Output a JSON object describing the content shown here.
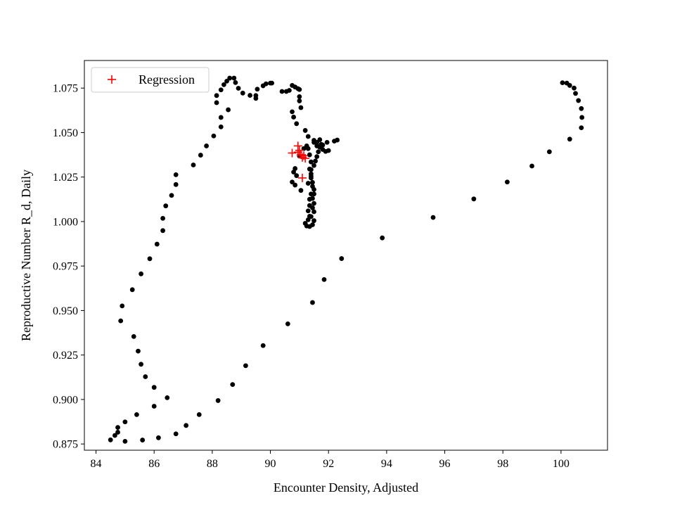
{
  "chart_data": {
    "type": "scatter",
    "title": "",
    "xlabel": "Encounter Density, Adjusted",
    "ylabel": "Reproductive Number R_d, Daily",
    "xlim": [
      83.6,
      101.6
    ],
    "ylim": [
      0.8715,
      1.0905
    ],
    "xticks": [
      84,
      86,
      88,
      90,
      92,
      94,
      96,
      98,
      100
    ],
    "yticks": [
      0.875,
      0.9,
      0.925,
      0.95,
      0.975,
      1.0,
      1.025,
      1.05,
      1.075
    ],
    "ytick_labels": [
      "0.875",
      "0.900",
      "0.925",
      "0.950",
      "0.975",
      "1.000",
      "1.025",
      "1.050",
      "1.075"
    ],
    "grid": false,
    "legend_position": "upper-left",
    "legend_entries": [
      "Regression"
    ],
    "series": [
      {
        "marker": "dot",
        "color": "#000000",
        "points": [
          [
            100.05,
            1.078
          ],
          [
            100.2,
            1.0778
          ],
          [
            100.3,
            1.0765
          ],
          [
            100.45,
            1.075
          ],
          [
            100.5,
            1.072
          ],
          [
            100.6,
            1.068
          ],
          [
            100.7,
            1.0635
          ],
          [
            100.72,
            1.0585
          ],
          [
            100.7,
            1.0527
          ],
          [
            100.3,
            1.0463
          ],
          [
            99.6,
            1.0392
          ],
          [
            99.0,
            1.0312
          ],
          [
            98.15,
            1.0222
          ],
          [
            97.0,
            1.0127
          ],
          [
            95.6,
            1.0023
          ],
          [
            93.85,
            0.9908
          ],
          [
            92.45,
            0.9792
          ],
          [
            91.85,
            0.9674
          ],
          [
            91.45,
            0.9545
          ],
          [
            90.6,
            0.9425
          ],
          [
            89.75,
            0.9303
          ],
          [
            89.15,
            0.919
          ],
          [
            88.7,
            0.9084
          ],
          [
            88.2,
            0.8994
          ],
          [
            87.55,
            0.8915
          ],
          [
            87.1,
            0.8854
          ],
          [
            86.75,
            0.8807
          ],
          [
            86.15,
            0.8785
          ],
          [
            85.6,
            0.8772
          ],
          [
            85.0,
            0.8765
          ],
          [
            84.5,
            0.8773
          ],
          [
            84.65,
            0.8798
          ],
          [
            84.75,
            0.8816
          ],
          [
            84.75,
            0.8843
          ],
          [
            85.0,
            0.8874
          ],
          [
            85.4,
            0.8915
          ],
          [
            86.0,
            0.8962
          ],
          [
            86.45,
            0.901
          ],
          [
            86.0,
            0.9068
          ],
          [
            85.7,
            0.9128
          ],
          [
            85.55,
            0.9198
          ],
          [
            85.45,
            0.9272
          ],
          [
            85.3,
            0.9354
          ],
          [
            84.85,
            0.9442
          ],
          [
            84.9,
            0.9526
          ],
          [
            85.25,
            0.9617
          ],
          [
            85.55,
            0.9706
          ],
          [
            85.85,
            0.9791
          ],
          [
            86.1,
            0.9873
          ],
          [
            86.3,
            0.9949
          ],
          [
            86.3,
            1.0018
          ],
          [
            86.4,
            1.0088
          ],
          [
            86.6,
            1.0147
          ],
          [
            86.75,
            1.0208
          ],
          [
            86.75,
            1.0263
          ],
          [
            87.35,
            1.0318
          ],
          [
            87.6,
            1.0373
          ],
          [
            87.8,
            1.0425
          ],
          [
            88.05,
            1.0481
          ],
          [
            88.3,
            1.0532
          ],
          [
            88.3,
            1.0585
          ],
          [
            88.55,
            1.0628
          ],
          [
            88.15,
            1.0668
          ],
          [
            88.15,
            1.0708
          ],
          [
            88.3,
            1.074
          ],
          [
            88.4,
            1.0769
          ],
          [
            88.5,
            1.0789
          ],
          [
            88.6,
            1.0806
          ],
          [
            88.75,
            1.0806
          ],
          [
            88.8,
            1.0781
          ],
          [
            88.9,
            1.0749
          ],
          [
            89.05,
            1.0722
          ],
          [
            89.3,
            1.0709
          ],
          [
            89.5,
            1.0692
          ],
          [
            89.5,
            1.0708
          ],
          [
            89.55,
            1.0744
          ],
          [
            89.75,
            1.0763
          ],
          [
            89.85,
            1.0774
          ],
          [
            90.0,
            1.0778
          ],
          [
            90.05,
            1.0778
          ],
          [
            90.4,
            1.0731
          ],
          [
            90.55,
            1.0731
          ],
          [
            90.65,
            1.0737
          ],
          [
            90.75,
            1.0765
          ],
          [
            90.85,
            1.0756
          ],
          [
            90.95,
            1.0747
          ],
          [
            91.0,
            1.0742
          ],
          [
            91.0,
            1.0702
          ],
          [
            91.0,
            1.0678
          ],
          [
            91.05,
            1.064
          ],
          [
            90.75,
            1.0617
          ],
          [
            90.8,
            1.0587
          ],
          [
            90.9,
            1.055
          ],
          [
            91.2,
            1.0512
          ],
          [
            91.3,
            1.0478
          ],
          [
            91.5,
            1.0456
          ],
          [
            91.6,
            1.0445
          ],
          [
            91.75,
            1.0434
          ],
          [
            91.7,
            1.0418
          ],
          [
            91.8,
            1.0405
          ],
          [
            92.0,
            1.0399
          ],
          [
            91.9,
            1.0394
          ],
          [
            91.65,
            1.0392
          ],
          [
            91.6,
            1.0365
          ],
          [
            91.55,
            1.034
          ],
          [
            91.5,
            1.0315
          ],
          [
            91.4,
            1.0292
          ],
          [
            91.4,
            1.0268
          ],
          [
            91.4,
            1.0245
          ],
          [
            91.45,
            1.022
          ],
          [
            91.45,
            1.0198
          ],
          [
            91.5,
            1.018
          ],
          [
            91.5,
            1.0155
          ],
          [
            91.45,
            1.013
          ],
          [
            91.5,
            1.0102
          ],
          [
            91.45,
            1.0077
          ],
          [
            91.5,
            1.0055
          ],
          [
            91.4,
            1.0028
          ],
          [
            91.5,
            1.0005
          ],
          [
            91.45,
            0.9982
          ],
          [
            91.35,
            0.9972
          ],
          [
            91.25,
            0.9975
          ],
          [
            91.2,
            0.999
          ],
          [
            91.3,
            1.001
          ],
          [
            91.35,
            1.003
          ],
          [
            91.3,
            1.006
          ],
          [
            91.35,
            1.009
          ],
          [
            91.35,
            1.0125
          ],
          [
            91.4,
            1.0155
          ],
          [
            91.3,
            1.0215
          ],
          [
            91.4,
            1.0255
          ],
          [
            91.35,
            1.0295
          ],
          [
            91.4,
            1.0335
          ],
          [
            91.35,
            1.0375
          ],
          [
            91.3,
            1.041
          ],
          [
            91.25,
            1.0425
          ],
          [
            91.15,
            1.041
          ],
          [
            91.0,
            1.0368
          ],
          [
            90.85,
            1.0298
          ],
          [
            90.8,
            1.0278
          ],
          [
            90.9,
            1.0258
          ],
          [
            91.05,
            1.0175
          ],
          [
            90.75,
            1.0222
          ],
          [
            90.85,
            1.0205
          ],
          [
            91.6,
            1.0425
          ],
          [
            91.8,
            1.043
          ],
          [
            91.95,
            1.0445
          ],
          [
            92.2,
            1.0452
          ],
          [
            92.3,
            1.0458
          ],
          [
            91.7,
            1.046
          ],
          [
            91.5,
            1.0445
          ]
        ]
      },
      {
        "name": "Regression",
        "marker": "plus",
        "color": "#ff0000",
        "points": [
          [
            90.75,
            1.0385
          ],
          [
            90.95,
            1.0425
          ],
          [
            90.95,
            1.039
          ],
          [
            91.05,
            1.0375
          ],
          [
            91.1,
            1.036
          ],
          [
            91.2,
            1.0355
          ],
          [
            91.0,
            1.04
          ],
          [
            91.1,
            1.0245
          ],
          [
            91.15,
            1.037
          ]
        ]
      }
    ]
  }
}
